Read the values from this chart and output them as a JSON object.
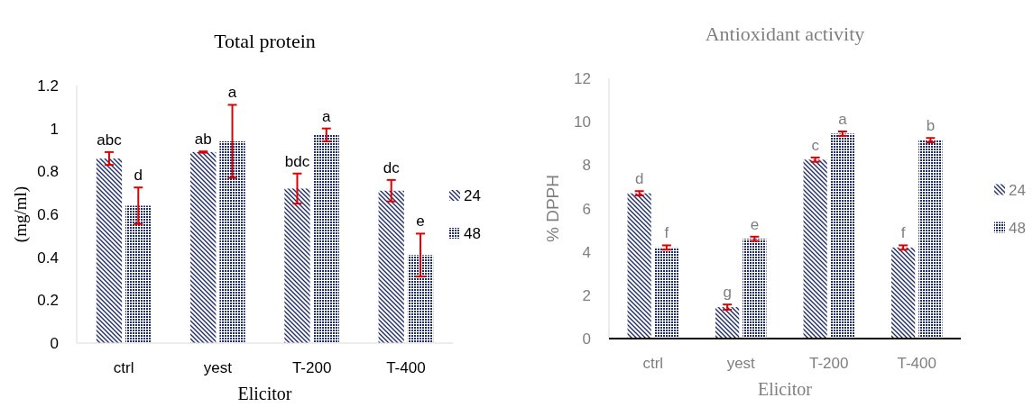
{
  "chart_data": [
    {
      "type": "bar",
      "title": "Total protein",
      "xlabel": "Elicitor",
      "ylabel": "(mg/ml)",
      "categories": [
        "ctrl",
        "yest",
        "T-200",
        "T-400"
      ],
      "ylim": [
        0,
        1.2
      ],
      "yticks": [
        0,
        0.2,
        0.4,
        0.6,
        0.8,
        1,
        {
          "value": 1.2,
          "label": "1.2"
        }
      ],
      "legend": "right",
      "series": [
        {
          "name": "24",
          "color": "#1f2d6b",
          "values": [
            0.86,
            0.89,
            0.72,
            0.71
          ],
          "errors": [
            0.03,
            0.003,
            0.07,
            0.05
          ],
          "value_labels": [
            "abc",
            "ab",
            "bdc",
            "dc"
          ]
        },
        {
          "name": "48",
          "color": "#1f2d6b",
          "values": [
            0.64,
            0.94,
            0.97,
            0.41
          ],
          "errors": [
            0.085,
            0.17,
            0.03,
            0.1
          ],
          "value_labels": [
            "d",
            "a",
            "a",
            "e"
          ]
        }
      ]
    },
    {
      "type": "bar",
      "title": "Antioxidant activity",
      "xlabel": "Elicitor",
      "ylabel": "% DPPH",
      "categories": [
        "ctrl",
        "yest",
        "T-200",
        "T-400"
      ],
      "ylim": [
        0,
        12
      ],
      "yticks": [
        0,
        2,
        4,
        6,
        8,
        10,
        12
      ],
      "legend": "right",
      "series": [
        {
          "name": "24",
          "color": "#1f2d6b",
          "values": [
            6.7,
            1.45,
            8.25,
            4.2
          ],
          "errors": [
            0.1,
            0.12,
            0.1,
            0.1
          ],
          "value_labels": [
            "d",
            "g",
            "c",
            "f"
          ]
        },
        {
          "name": "48",
          "color": "#1f2d6b",
          "values": [
            4.2,
            4.6,
            9.45,
            9.15
          ],
          "errors": [
            0.1,
            0.1,
            0.1,
            0.1
          ],
          "value_labels": [
            "f",
            "e",
            "a",
            "b"
          ]
        }
      ]
    }
  ]
}
